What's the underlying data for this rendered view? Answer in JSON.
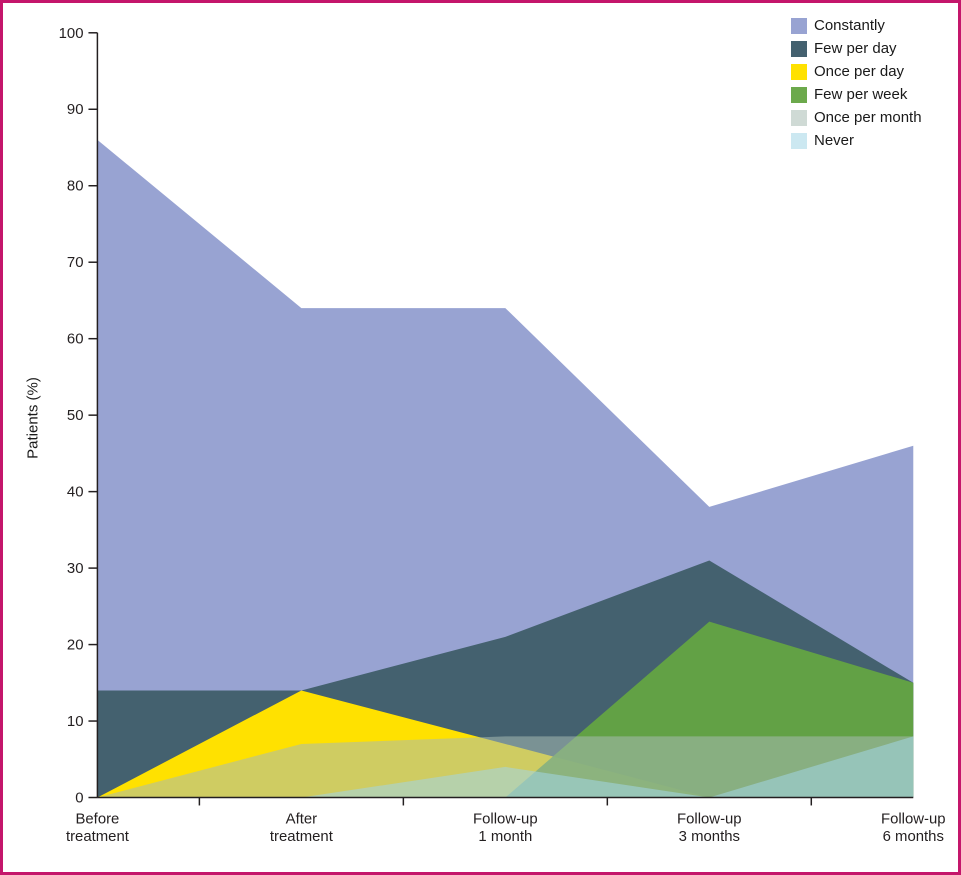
{
  "figure": {
    "border_color": "#c4166b",
    "background": "#ffffff"
  },
  "chart_data": {
    "type": "area",
    "title": "",
    "xlabel": "",
    "ylabel": "Patients (%)",
    "ylim": [
      0,
      100
    ],
    "ytick_step": 10,
    "ytick_labels": [
      "0",
      "10",
      "20",
      "30",
      "40",
      "50",
      "60",
      "70",
      "80",
      "90",
      "100"
    ],
    "grid": false,
    "legend_position": "top-right",
    "axis_color": "#231f20",
    "text_color": "#231f20",
    "categories": [
      [
        "Before",
        "treatment"
      ],
      [
        "After",
        "treatment"
      ],
      [
        "Follow-up",
        "1 month"
      ],
      [
        "Follow-up",
        "3 months"
      ],
      [
        "Follow-up",
        "6 months"
      ]
    ],
    "series": [
      {
        "name": "Constantly",
        "color": "#98a3d2",
        "opacity": 1,
        "values": [
          86,
          64,
          64,
          38,
          46
        ]
      },
      {
        "name": "Few per day",
        "color": "#44616f",
        "opacity": 1,
        "values": [
          14,
          14,
          21,
          31,
          15
        ]
      },
      {
        "name": "Once per day",
        "color": "#ffe100",
        "opacity": 1,
        "values": [
          0,
          14,
          7,
          0,
          0
        ]
      },
      {
        "name": "Few per week",
        "color": "#64a442",
        "opacity": 0.95,
        "values": [
          0,
          0,
          0,
          23,
          15
        ]
      },
      {
        "name": "Once per month",
        "color": "#a7bcb2",
        "opacity": 0.55,
        "values": [
          0,
          7,
          8,
          8,
          8
        ]
      },
      {
        "name": "Never",
        "color": "#a3d5e6",
        "opacity": 0.55,
        "values": [
          0,
          0,
          4,
          0,
          8
        ]
      }
    ]
  }
}
